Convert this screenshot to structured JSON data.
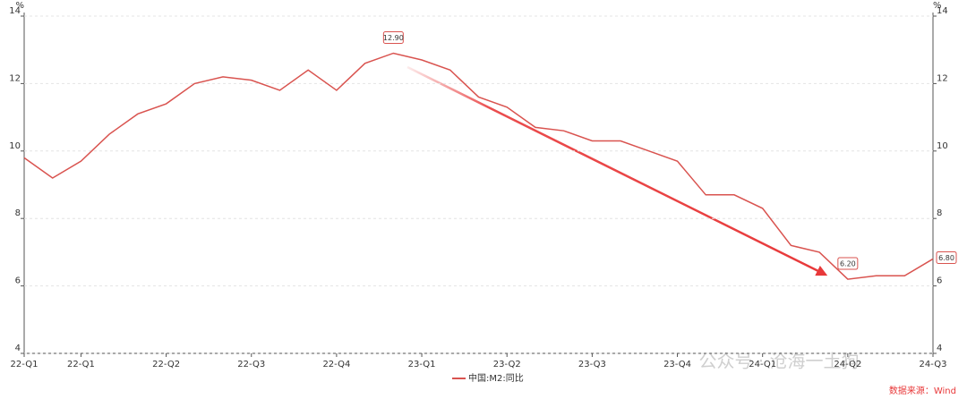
{
  "chart_data": {
    "type": "line",
    "y_unit": "%",
    "categories": [
      "22-Q1",
      null,
      "22-Q1",
      null,
      null,
      "22-Q2",
      null,
      null,
      "22-Q3",
      null,
      null,
      "22-Q4",
      null,
      null,
      "23-Q1",
      null,
      null,
      "23-Q2",
      null,
      null,
      "23-Q3",
      null,
      null,
      "23-Q4",
      null,
      null,
      "24-Q1",
      null,
      null,
      "24-Q2",
      null,
      null,
      "24-Q3"
    ],
    "series": [
      {
        "name": "中国:M2:同比",
        "color": "#d9534f",
        "values": [
          9.8,
          9.2,
          9.7,
          10.5,
          11.1,
          11.4,
          12.0,
          12.2,
          12.1,
          11.8,
          12.4,
          11.8,
          12.6,
          12.9,
          12.7,
          12.4,
          11.6,
          11.3,
          10.7,
          10.6,
          10.3,
          10.3,
          10.0,
          9.7,
          8.7,
          8.7,
          8.3,
          7.2,
          7.0,
          6.2,
          6.3,
          6.3,
          6.8
        ],
        "value_labels": [
          null,
          null,
          null,
          null,
          null,
          null,
          null,
          null,
          null,
          null,
          null,
          null,
          null,
          "12.90",
          null,
          null,
          null,
          null,
          null,
          null,
          null,
          null,
          null,
          null,
          null,
          null,
          null,
          null,
          null,
          "6.20",
          null,
          null,
          "6.80"
        ]
      }
    ],
    "ylim": [
      4,
      14
    ],
    "yticks": [
      4,
      6,
      8,
      10,
      12,
      14
    ],
    "y2lim": [
      4,
      14
    ],
    "y2ticks": [
      4,
      6,
      8,
      10,
      12,
      14
    ],
    "grid": true,
    "legend": "bottom",
    "source": "数据来源：Wind",
    "watermark": "公众号 · 沧海一土狗"
  }
}
